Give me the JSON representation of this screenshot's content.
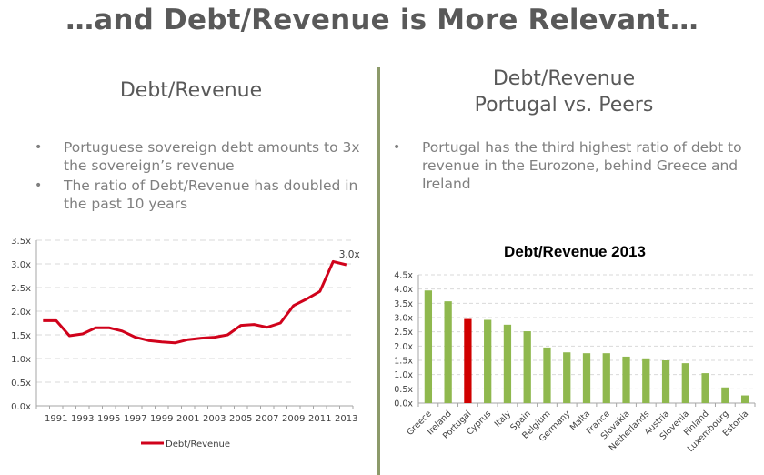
{
  "slide": {
    "title": "…and Debt/Revenue is More Relevant…",
    "left": {
      "subtitle": "Debt/Revenue",
      "bullets": [
        "Portuguese sovereign debt amounts to 3x the sovereign’s revenue",
        "The ratio of Debt/Revenue has doubled in the past 10 years"
      ]
    },
    "right": {
      "subtitle_line1": "Debt/Revenue",
      "subtitle_line2": "Portugal vs. Peers",
      "bullets": [
        "Portugal has the third highest ratio of debt to revenue in the Eurozone, behind Greece and Ireland"
      ]
    }
  },
  "colors": {
    "line": "#d0021b",
    "bar_default": "#8fb84e",
    "bar_highlight": "#d00000",
    "divider": "#8c9a6a",
    "grid": "#d9d9d9"
  },
  "chart_data": [
    {
      "type": "line",
      "title": "",
      "xlabel": "",
      "ylabel": "",
      "x": [
        1990,
        1991,
        1992,
        1993,
        1994,
        1995,
        1996,
        1997,
        1998,
        1999,
        2000,
        2001,
        2002,
        2003,
        2004,
        2005,
        2006,
        2007,
        2008,
        2009,
        2010,
        2011,
        2012,
        2013
      ],
      "x_tick_labels": [
        "1991",
        "1993",
        "1995",
        "1997",
        "1999",
        "2001",
        "2003",
        "2005",
        "2007",
        "2009",
        "2011",
        "2013"
      ],
      "series": [
        {
          "name": "Debt/Revenue",
          "values": [
            1.8,
            1.8,
            1.48,
            1.52,
            1.65,
            1.65,
            1.58,
            1.45,
            1.38,
            1.35,
            1.33,
            1.4,
            1.43,
            1.45,
            1.5,
            1.7,
            1.72,
            1.66,
            1.75,
            2.12,
            2.26,
            2.42,
            3.05,
            2.98
          ]
        }
      ],
      "y_tick_labels": [
        "0.0x",
        "0.5x",
        "1.0x",
        "1.5x",
        "2.0x",
        "2.5x",
        "3.0x",
        "3.5x"
      ],
      "ylim": [
        0,
        3.5
      ],
      "grid": true,
      "annotation": {
        "text": "3.0x",
        "x": 2013
      },
      "legend": {
        "position": "bottom",
        "entries": [
          "Debt/Revenue"
        ]
      }
    },
    {
      "type": "bar",
      "title": "Debt/Revenue 2013",
      "xlabel": "",
      "ylabel": "",
      "categories": [
        "Greece",
        "Ireland",
        "Portugal",
        "Cyprus",
        "Italy",
        "Spain",
        "Belgium",
        "Germany",
        "Malta",
        "France",
        "Slovakia",
        "Netherlands",
        "Austria",
        "Slovenia",
        "Finland",
        "Luxembourg",
        "Estonia"
      ],
      "values": [
        3.95,
        3.57,
        2.95,
        2.92,
        2.75,
        2.52,
        1.95,
        1.78,
        1.75,
        1.75,
        1.63,
        1.57,
        1.5,
        1.4,
        1.05,
        0.55,
        0.27
      ],
      "highlight": "Portugal",
      "y_tick_labels": [
        "0.0x",
        "0.5x",
        "1.0x",
        "1.5x",
        "2.0x",
        "2.5x",
        "3.0x",
        "3.5x",
        "4.0x",
        "4.5x"
      ],
      "ylim": [
        0,
        4.5
      ],
      "grid": true
    }
  ]
}
